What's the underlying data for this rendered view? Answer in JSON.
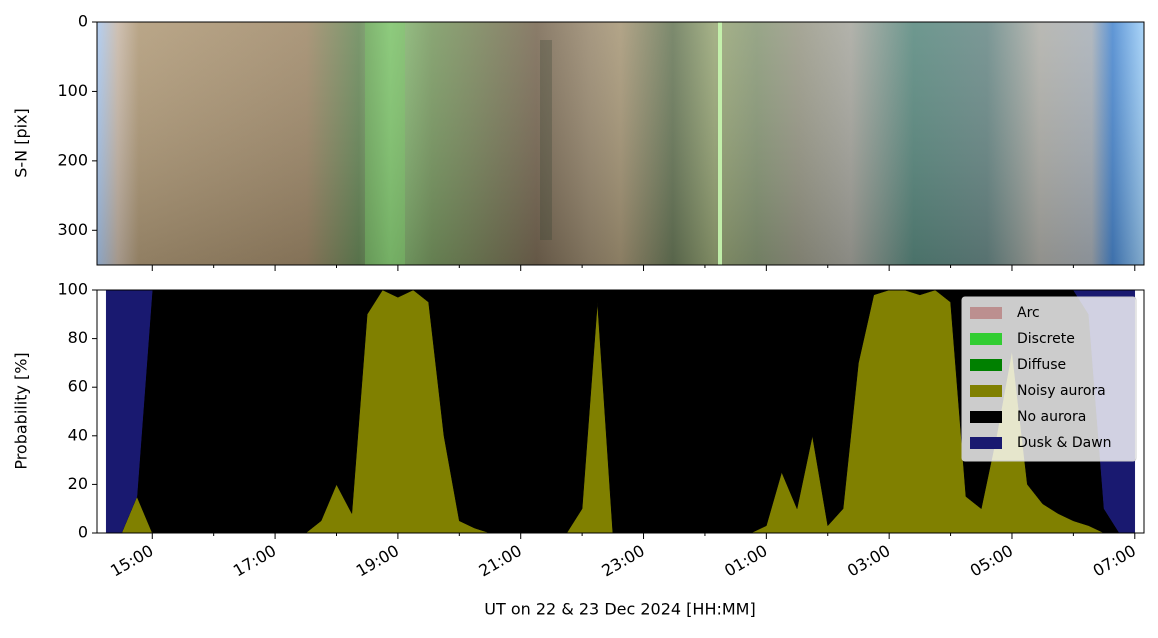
{
  "chart_data": [
    {
      "type": "image",
      "y_label": "S-N [pix]",
      "ylim": [
        350,
        0
      ],
      "yticks": [
        0,
        100,
        200,
        300
      ]
    },
    {
      "type": "area",
      "stacked": true,
      "x_label": "UT on 22 & 23 Dec 2024 [HH:MM]",
      "y_label": "Probability [%]",
      "xlim": [
        14.1,
        31.15
      ],
      "xticks": [
        {
          "value": 15,
          "label": "15:00"
        },
        {
          "value": 17,
          "label": "17:00"
        },
        {
          "value": 19,
          "label": "19:00"
        },
        {
          "value": 21,
          "label": "21:00"
        },
        {
          "value": 23,
          "label": "23:00"
        },
        {
          "value": 25,
          "label": "01:00"
        },
        {
          "value": 27,
          "label": "03:00"
        },
        {
          "value": 29,
          "label": "05:00"
        },
        {
          "value": 31,
          "label": "07:00"
        }
      ],
      "xticks_minor": [
        16,
        18,
        20,
        22,
        24,
        26,
        28,
        30
      ],
      "ylim": [
        0,
        100
      ],
      "yticks": [
        0,
        20,
        40,
        60,
        80,
        100
      ],
      "legend": "upper right",
      "x": [
        14.25,
        14.5,
        14.75,
        15.0,
        15.25,
        15.5,
        15.75,
        16.0,
        16.25,
        16.5,
        16.75,
        17.0,
        17.25,
        17.5,
        17.75,
        18.0,
        18.25,
        18.5,
        18.75,
        19.0,
        19.25,
        19.5,
        19.75,
        20.0,
        20.25,
        20.5,
        20.75,
        21.0,
        21.25,
        21.5,
        21.75,
        22.0,
        22.25,
        22.5,
        22.75,
        23.0,
        23.25,
        23.5,
        23.75,
        24.0,
        24.25,
        24.5,
        24.75,
        25.0,
        25.25,
        25.5,
        25.75,
        26.0,
        26.25,
        26.5,
        26.75,
        27.0,
        27.25,
        27.5,
        27.75,
        28.0,
        28.25,
        28.5,
        28.75,
        29.0,
        29.25,
        29.5,
        29.75,
        30.0,
        30.25,
        30.5,
        30.75,
        31.0
      ],
      "series": [
        {
          "name": "Arc",
          "color": "#bc8f8f",
          "values": [
            0,
            0,
            0,
            0,
            0,
            0,
            0,
            0,
            0,
            0,
            0,
            0,
            0,
            0,
            0,
            0,
            0,
            0,
            0,
            0,
            0,
            0,
            0,
            0,
            0,
            0,
            0,
            0,
            0,
            0,
            0,
            0,
            0,
            0,
            0,
            0,
            0,
            0,
            0,
            0,
            0,
            0,
            0,
            0,
            0,
            0,
            0,
            0,
            0,
            0,
            0,
            0,
            0,
            0,
            0,
            0,
            0,
            0,
            0,
            0,
            0,
            0,
            0,
            0,
            0,
            0,
            0,
            0
          ]
        },
        {
          "name": "Discrete",
          "color": "#32cd32",
          "values": [
            0,
            0,
            0,
            0,
            0,
            0,
            0,
            0,
            0,
            0,
            0,
            0,
            0,
            0,
            0,
            0,
            0,
            0,
            0,
            0,
            0,
            0,
            0,
            0,
            0,
            0,
            0,
            0,
            0,
            0,
            0,
            0,
            0,
            0,
            0,
            0,
            0,
            0,
            0,
            0,
            0,
            0,
            0,
            0,
            0,
            0,
            0,
            0,
            0,
            0,
            0,
            0,
            0,
            0,
            0,
            0,
            0,
            0,
            0,
            0,
            0,
            0,
            0,
            0,
            0,
            0,
            0,
            0
          ]
        },
        {
          "name": "Diffuse",
          "color": "#008000",
          "values": [
            0,
            0,
            0,
            0,
            0,
            0,
            0,
            0,
            0,
            0,
            0,
            0,
            0,
            0,
            0,
            0,
            0,
            0,
            0,
            0,
            0,
            0,
            0,
            0,
            0,
            0,
            0,
            0,
            0,
            0,
            0,
            0,
            0,
            0,
            0,
            0,
            0,
            0,
            0,
            0,
            0,
            0,
            0,
            0,
            0,
            0,
            0,
            0,
            0,
            0,
            0,
            0,
            0,
            0,
            0,
            0,
            0,
            0,
            0,
            0,
            0,
            0,
            0,
            0,
            0,
            0,
            0,
            0
          ]
        },
        {
          "name": "Noisy aurora",
          "color": "#808000",
          "values": [
            0,
            0,
            15,
            0,
            0,
            0,
            0,
            0,
            0,
            0,
            0,
            0,
            0,
            0,
            5,
            20,
            8,
            90,
            100,
            97,
            100,
            95,
            40,
            5,
            2,
            0,
            0,
            0,
            0,
            0,
            0,
            10,
            95,
            0,
            0,
            0,
            0,
            0,
            0,
            0,
            0,
            0,
            0,
            3,
            25,
            10,
            40,
            3,
            10,
            70,
            98,
            100,
            100,
            98,
            100,
            95,
            15,
            10,
            40,
            75,
            20,
            12,
            8,
            5,
            3,
            0,
            0,
            0
          ]
        },
        {
          "name": "No aurora",
          "color": "#000000",
          "values": [
            0,
            0,
            0,
            100,
            100,
            100,
            100,
            100,
            100,
            100,
            100,
            100,
            100,
            100,
            95,
            80,
            92,
            10,
            0,
            3,
            0,
            5,
            60,
            95,
            98,
            100,
            100,
            100,
            100,
            100,
            100,
            90,
            5,
            100,
            100,
            100,
            100,
            100,
            100,
            100,
            100,
            100,
            100,
            97,
            75,
            90,
            60,
            97,
            90,
            30,
            2,
            0,
            0,
            2,
            0,
            5,
            85,
            90,
            60,
            25,
            80,
            88,
            92,
            95,
            87,
            10,
            0,
            0
          ]
        },
        {
          "name": "Dusk & Dawn",
          "color": "#191970",
          "values": [
            100,
            100,
            85,
            0,
            0,
            0,
            0,
            0,
            0,
            0,
            0,
            0,
            0,
            0,
            0,
            0,
            0,
            0,
            0,
            0,
            0,
            0,
            0,
            0,
            0,
            0,
            0,
            0,
            0,
            0,
            0,
            0,
            0,
            0,
            0,
            0,
            0,
            0,
            0,
            0,
            0,
            0,
            0,
            0,
            0,
            0,
            0,
            0,
            0,
            0,
            0,
            0,
            0,
            0,
            0,
            0,
            0,
            0,
            0,
            0,
            0,
            0,
            0,
            0,
            10,
            90,
            100,
            100
          ]
        }
      ]
    }
  ]
}
